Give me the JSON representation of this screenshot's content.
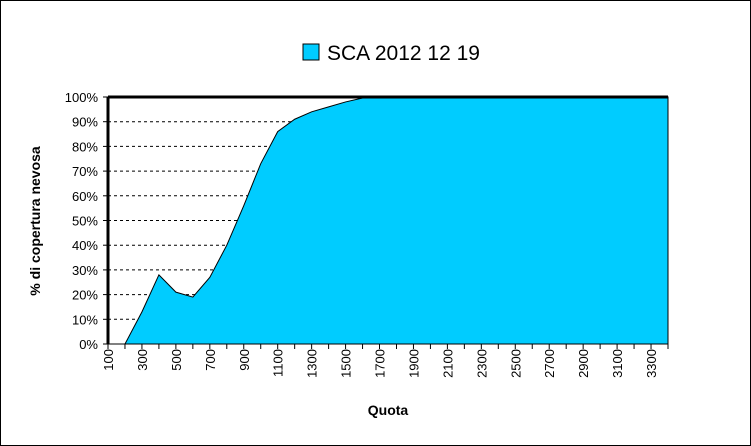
{
  "chart_data": {
    "type": "area",
    "legend": {
      "label": "SCA 2012 12 19",
      "placement": "top"
    },
    "xlabel": "Quota",
    "ylabel": "% di copertura nevosa",
    "x": [
      100,
      200,
      300,
      400,
      500,
      600,
      700,
      800,
      900,
      1000,
      1100,
      1200,
      1300,
      1400,
      1500,
      1600,
      1700,
      1800,
      1900,
      2000,
      2100,
      2200,
      2300,
      2400,
      2500,
      2600,
      2700,
      2800,
      2900,
      3000,
      3100,
      3200,
      3300,
      3400
    ],
    "y": [
      0,
      0,
      13,
      28,
      21,
      19,
      27,
      40,
      56,
      73,
      86,
      91,
      94,
      96,
      98,
      99.6,
      100,
      100,
      100,
      100,
      100,
      100,
      100,
      100,
      100,
      100,
      100,
      100,
      100,
      100,
      100,
      100,
      100,
      100
    ],
    "xticks": [
      "100",
      "300",
      "500",
      "700",
      "900",
      "1100",
      "1300",
      "1500",
      "1700",
      "1900",
      "2100",
      "2300",
      "2500",
      "2700",
      "2900",
      "3100",
      "3300"
    ],
    "yticks": [
      "0%",
      "10%",
      "20%",
      "30%",
      "40%",
      "50%",
      "60%",
      "70%",
      "80%",
      "90%",
      "100%"
    ],
    "ylim": [
      0,
      100
    ],
    "grid": "horizontal-dashed",
    "fill_color": "#00CCFF",
    "line_color": "#000000"
  }
}
